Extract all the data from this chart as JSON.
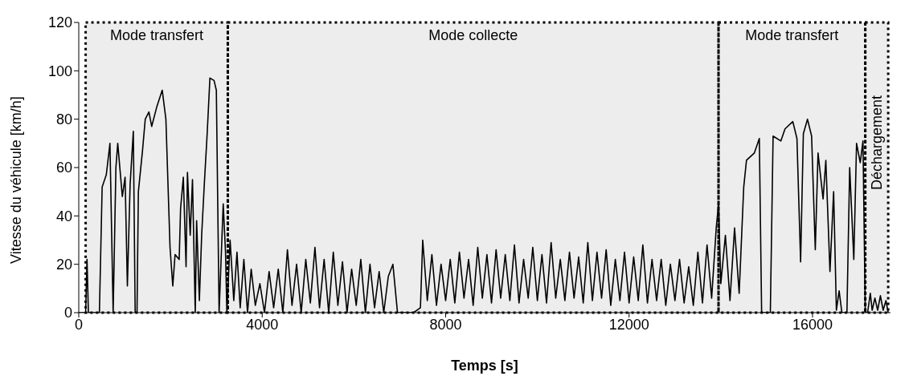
{
  "chart_data": {
    "type": "line",
    "xlabel": "Temps [s]",
    "ylabel": "Vitesse du véhicule [km/h]",
    "xlim": [
      0,
      17700
    ],
    "xticks": [
      0,
      4000,
      8000,
      12000,
      16000
    ],
    "ylim": [
      0,
      120
    ],
    "yticks": [
      0,
      20,
      40,
      60,
      80,
      100,
      120
    ],
    "marker": "none",
    "line_style": "solid",
    "bands": [
      {
        "axis": "x",
        "from": 150,
        "to": 3250,
        "label": "Mode transfert",
        "color": "#000000"
      },
      {
        "axis": "x",
        "from": 3250,
        "to": 13950,
        "label": "Mode collecte",
        "color": "#000000"
      },
      {
        "axis": "x",
        "from": 13950,
        "to": 17150,
        "label": "Mode transfert",
        "color": "#000000"
      },
      {
        "axis": "x",
        "from": 17150,
        "to": 17650,
        "label": "Déchargement",
        "color": "#000000"
      }
    ],
    "series": [
      {
        "color": "#000000",
        "x": [
          0,
          150,
          180,
          210,
          450,
          510,
          600,
          680,
          750,
          810,
          850,
          950,
          1010,
          1060,
          1120,
          1190,
          1230,
          1270,
          1300,
          1390,
          1450,
          1530,
          1590,
          1700,
          1820,
          1900,
          1990,
          2050,
          2100,
          2190,
          2220,
          2280,
          2340,
          2370,
          2430,
          2480,
          2540,
          2570,
          2630,
          2680,
          2740,
          2800,
          2860,
          2950,
          3000,
          3060,
          3150,
          3200,
          3230,
          3300,
          3380,
          3450,
          3520,
          3600,
          3680,
          3760,
          3850,
          3950,
          4050,
          4150,
          4250,
          4350,
          4450,
          4550,
          4650,
          4750,
          4850,
          4950,
          5050,
          5150,
          5250,
          5350,
          5450,
          5550,
          5650,
          5750,
          5850,
          5950,
          6050,
          6150,
          6250,
          6350,
          6450,
          6550,
          6650,
          6750,
          6850,
          6950,
          7100,
          7300,
          7450,
          7500,
          7600,
          7700,
          7800,
          7900,
          8000,
          8100,
          8200,
          8300,
          8400,
          8500,
          8600,
          8700,
          8800,
          8900,
          9000,
          9100,
          9200,
          9300,
          9400,
          9500,
          9600,
          9700,
          9800,
          9900,
          10000,
          10100,
          10200,
          10300,
          10400,
          10500,
          10600,
          10700,
          10800,
          10900,
          11000,
          11100,
          11200,
          11300,
          11400,
          11500,
          11600,
          11700,
          11800,
          11900,
          12000,
          12100,
          12200,
          12300,
          12400,
          12500,
          12600,
          12700,
          12800,
          12900,
          13000,
          13100,
          13200,
          13300,
          13400,
          13500,
          13600,
          13700,
          13800,
          13900,
          13950,
          14000,
          14100,
          14200,
          14300,
          14400,
          14500,
          14560,
          14730,
          14840,
          14890,
          15080,
          15140,
          15310,
          15400,
          15570,
          15660,
          15740,
          15800,
          15890,
          15980,
          16060,
          16120,
          16230,
          16290,
          16380,
          16460,
          16520,
          16580,
          16640,
          16750,
          16810,
          16900,
          16960,
          17040,
          17100,
          17150,
          17200,
          17260,
          17300,
          17360,
          17420,
          17480,
          17540,
          17600,
          17650
        ],
        "values": [
          0,
          0,
          22,
          0,
          0,
          52,
          57,
          70,
          0,
          60,
          70,
          48,
          56,
          11,
          53,
          75,
          0,
          0,
          50,
          67,
          80,
          83,
          77,
          85,
          92,
          80,
          27,
          11,
          24,
          22,
          43,
          56,
          19,
          58,
          32,
          55,
          0,
          38,
          5,
          32,
          54,
          74,
          97,
          96,
          92,
          0,
          45,
          25,
          0,
          30,
          5,
          25,
          2,
          22,
          0,
          18,
          3,
          12,
          0,
          17,
          2,
          18,
          0,
          26,
          3,
          20,
          0,
          22,
          4,
          27,
          2,
          22,
          0,
          25,
          3,
          21,
          0,
          18,
          3,
          22,
          0,
          20,
          2,
          17,
          0,
          15,
          20,
          0,
          0,
          0,
          2,
          30,
          5,
          24,
          3,
          20,
          5,
          22,
          4,
          25,
          6,
          22,
          3,
          27,
          6,
          24,
          4,
          26,
          6,
          24,
          5,
          28,
          4,
          22,
          6,
          27,
          5,
          24,
          4,
          29,
          6,
          22,
          5,
          25,
          6,
          23,
          4,
          29,
          5,
          25,
          6,
          26,
          3,
          22,
          5,
          25,
          4,
          23,
          5,
          28,
          4,
          22,
          5,
          22,
          3,
          20,
          5,
          22,
          4,
          19,
          3,
          25,
          4,
          28,
          6,
          35,
          45,
          12,
          32,
          5,
          35,
          8,
          52,
          63,
          66,
          72,
          0,
          0,
          73,
          71,
          76,
          79,
          72,
          21,
          74,
          80,
          73,
          26,
          66,
          47,
          63,
          17,
          50,
          1,
          9,
          0,
          0,
          60,
          22,
          70,
          62,
          71,
          0,
          0,
          8,
          1,
          6,
          1,
          7,
          1,
          5,
          0
        ]
      }
    ]
  }
}
